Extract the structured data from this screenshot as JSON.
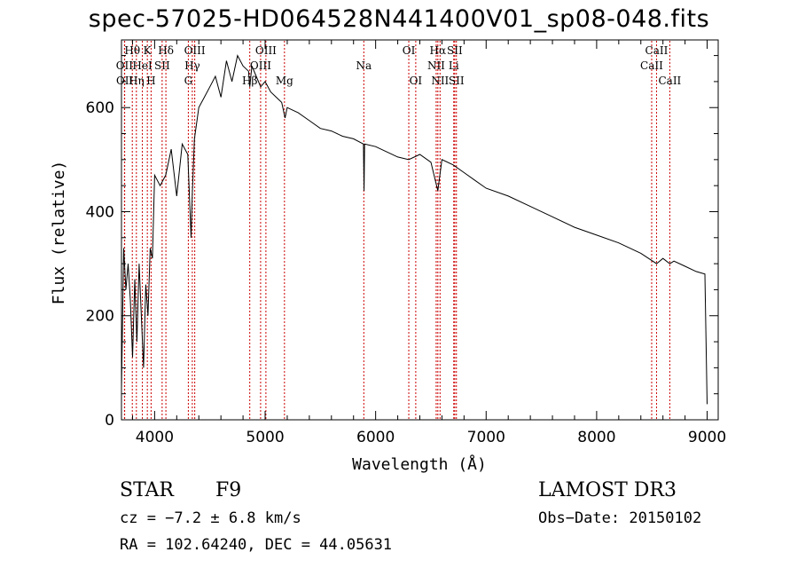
{
  "chart_data": {
    "type": "line",
    "title": "spec-57025-HD064528N441400V01_sp08-048.fits",
    "xlabel": "Wavelength (Å)",
    "ylabel": "Flux (relative)",
    "xlim": [
      3700,
      9100
    ],
    "ylim": [
      0,
      730
    ],
    "xticks": [
      4000,
      5000,
      6000,
      7000,
      8000,
      9000
    ],
    "yticks": [
      0,
      200,
      400,
      600
    ],
    "grid": false,
    "series": [
      {
        "name": "spectrum",
        "x": [
          3700,
          3720,
          3740,
          3760,
          3780,
          3800,
          3820,
          3840,
          3860,
          3880,
          3900,
          3920,
          3940,
          3960,
          3980,
          4000,
          4050,
          4100,
          4150,
          4200,
          4250,
          4300,
          4330,
          4340,
          4360,
          4400,
          4450,
          4500,
          4550,
          4600,
          4650,
          4700,
          4750,
          4800,
          4850,
          4861,
          4880,
          4920,
          4960,
          5000,
          5050,
          5100,
          5150,
          5180,
          5200,
          5300,
          5400,
          5500,
          5600,
          5700,
          5800,
          5890,
          5895,
          5900,
          6000,
          6100,
          6200,
          6300,
          6400,
          6500,
          6563,
          6600,
          6700,
          6800,
          6900,
          7000,
          7200,
          7400,
          7600,
          7800,
          8000,
          8200,
          8400,
          8542,
          8600,
          8662,
          8700,
          8800,
          8900,
          8980,
          9000
        ],
        "values": [
          60,
          330,
          250,
          300,
          230,
          120,
          270,
          150,
          300,
          200,
          100,
          260,
          200,
          330,
          310,
          470,
          450,
          470,
          520,
          430,
          530,
          510,
          350,
          430,
          540,
          600,
          620,
          640,
          660,
          620,
          690,
          650,
          700,
          680,
          670,
          640,
          680,
          660,
          640,
          650,
          630,
          620,
          610,
          580,
          600,
          590,
          575,
          560,
          555,
          545,
          540,
          530,
          440,
          530,
          525,
          515,
          505,
          500,
          510,
          495,
          440,
          500,
          490,
          475,
          460,
          445,
          430,
          410,
          390,
          370,
          355,
          340,
          320,
          300,
          310,
          300,
          305,
          295,
          285,
          280,
          30
        ]
      }
    ],
    "lines": [
      {
        "label": "OII",
        "wavelength": 3727,
        "row": 2
      },
      {
        "label": "OII",
        "wavelength": 3729,
        "row": 3
      },
      {
        "label": "Hθ",
        "wavelength": 3798,
        "row": 1
      },
      {
        "label": "Hη",
        "wavelength": 3835,
        "row": 3
      },
      {
        "label": "HeI",
        "wavelength": 3889,
        "row": 2
      },
      {
        "label": "K",
        "wavelength": 3934,
        "row": 1
      },
      {
        "label": "H",
        "wavelength": 3968,
        "row": 3
      },
      {
        "label": "SII",
        "wavelength": 4068,
        "row": 2
      },
      {
        "label": "Hδ",
        "wavelength": 4102,
        "row": 1
      },
      {
        "label": "G",
        "wavelength": 4305,
        "row": 3
      },
      {
        "label": "Hγ",
        "wavelength": 4341,
        "row": 2
      },
      {
        "label": "OIII",
        "wavelength": 4363,
        "row": 1
      },
      {
        "label": "Hβ",
        "wavelength": 4861,
        "row": 3
      },
      {
        "label": "OIII",
        "wavelength": 4959,
        "row": 2
      },
      {
        "label": "OIII",
        "wavelength": 5007,
        "row": 1
      },
      {
        "label": "Mg",
        "wavelength": 5175,
        "row": 3
      },
      {
        "label": "Na",
        "wavelength": 5893,
        "row": 2
      },
      {
        "label": "OI",
        "wavelength": 6300,
        "row": 1
      },
      {
        "label": "OI",
        "wavelength": 6363,
        "row": 3
      },
      {
        "label": "NII",
        "wavelength": 6548,
        "row": 2
      },
      {
        "label": "Hα",
        "wavelength": 6563,
        "row": 1
      },
      {
        "label": "NII",
        "wavelength": 6583,
        "row": 3
      },
      {
        "label": "Li",
        "wavelength": 6707,
        "row": 2
      },
      {
        "label": "SII",
        "wavelength": 6716,
        "row": 1
      },
      {
        "label": "SII",
        "wavelength": 6731,
        "row": 3
      },
      {
        "label": "CaII",
        "wavelength": 8498,
        "row": 2
      },
      {
        "label": "CaII",
        "wavelength": 8542,
        "row": 1
      },
      {
        "label": "CaII",
        "wavelength": 8662,
        "row": 3
      }
    ]
  },
  "info": {
    "object_class": "STAR",
    "subclass": "F9",
    "survey": "LAMOST DR3",
    "cz": "cz = −7.2 ± 6.8 km/s",
    "obs_date": "Obs−Date: 20150102",
    "coords": "RA = 102.64240, DEC =  44.05631"
  },
  "colors": {
    "line_marker": "#cc0000",
    "spectrum": "#000000"
  }
}
